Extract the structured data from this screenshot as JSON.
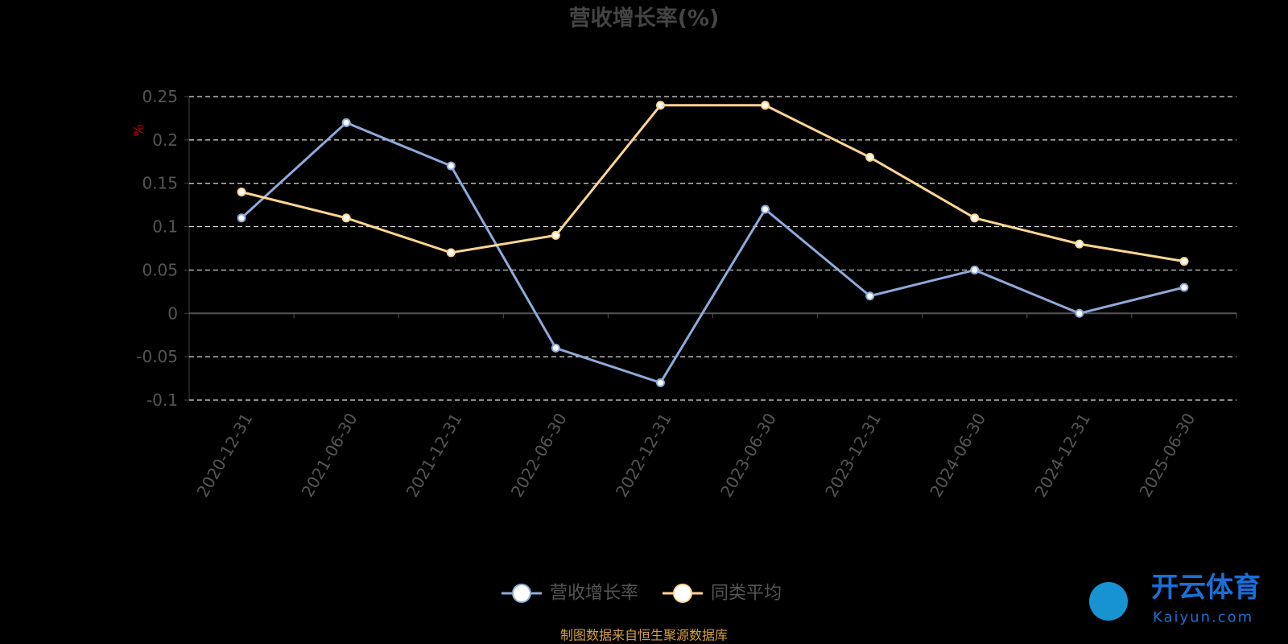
{
  "chart_data": {
    "type": "line",
    "title": "营收增长率(%)",
    "y_axis_label": "%",
    "categories": [
      "2020-12-31",
      "2021-06-30",
      "2021-12-31",
      "2022-06-30",
      "2022-12-31",
      "2023-06-30",
      "2023-12-31",
      "2024-06-30",
      "2024-12-31",
      "2025-06-30"
    ],
    "series": [
      {
        "name": "营收增长率",
        "color": "#8eaadb",
        "values": [
          0.11,
          0.22,
          0.17,
          -0.04,
          -0.08,
          0.12,
          0.02,
          0.05,
          0,
          0.03
        ]
      },
      {
        "name": "同类平均",
        "color": "#ffd591",
        "values": [
          0.14,
          0.11,
          0.07,
          0.09,
          0.24,
          0.24,
          0.18,
          0.11,
          0.08,
          0.06
        ]
      }
    ],
    "ylim": [
      -0.1,
      0.25
    ],
    "yticks": [
      -0.1,
      -0.05,
      0,
      0.05,
      0.1,
      0.15,
      0.2,
      0.25
    ],
    "grid": true,
    "legend": "bottom",
    "source": "制图数据来自恒生聚源数据库"
  },
  "watermark": {
    "name": "开云体育",
    "url": "Kaiyun.com"
  }
}
